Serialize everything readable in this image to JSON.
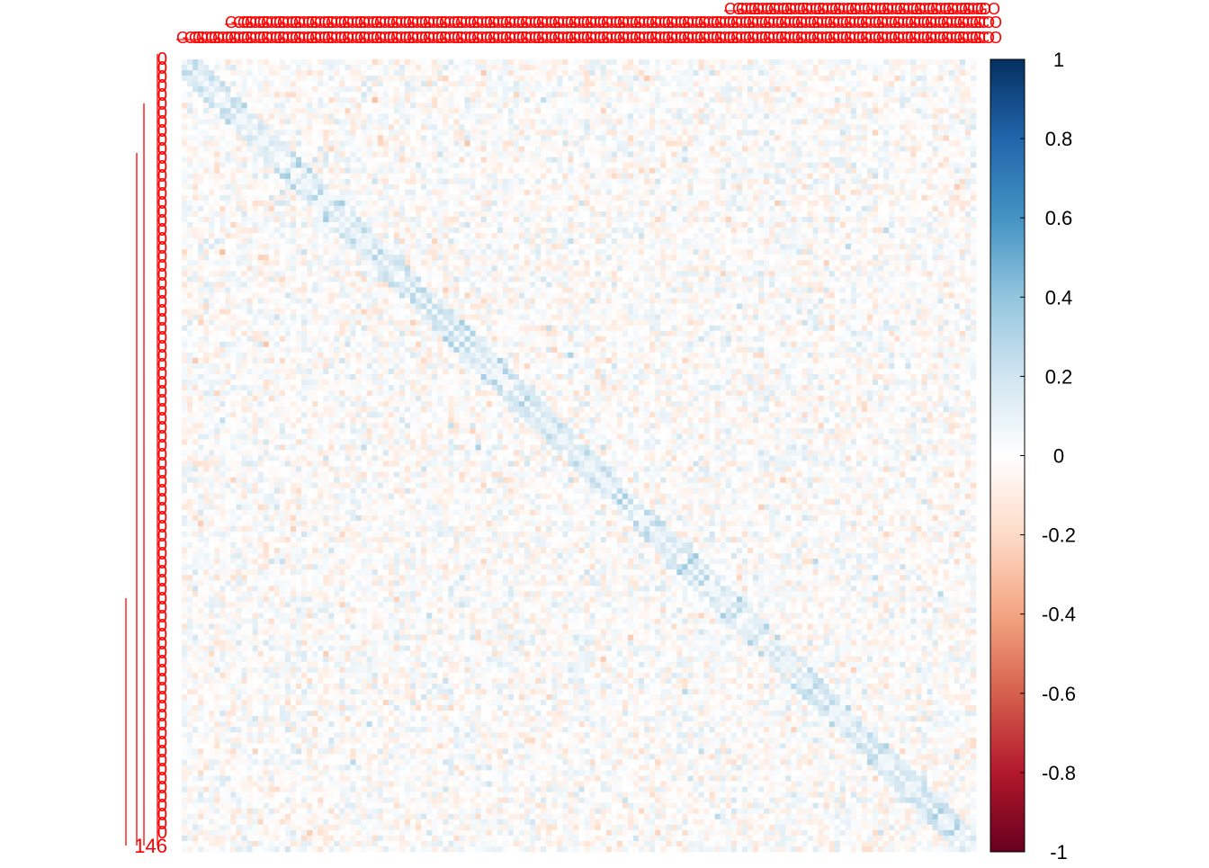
{
  "chart_data": {
    "type": "heatmap",
    "title": "",
    "xlabel": "",
    "ylabel": "",
    "matrix_size": 146,
    "value_range": [
      -1,
      1
    ],
    "diagonal_pattern": "weak positive blocks along main diagonal, |r| mostly < 0.3",
    "colorbar": {
      "ticks": [
        1,
        0.8,
        0.6,
        0.4,
        0.2,
        0,
        -0.2,
        -0.4,
        -0.6,
        -0.8,
        -1
      ],
      "tick_labels": [
        "1",
        "0.8",
        "0.6",
        "0.4",
        "0.2",
        "0",
        "-0.2",
        "-0.4",
        "-0.6",
        "-0.8",
        "-1"
      ],
      "colors": [
        "#053061",
        "#2166AC",
        "#4393C3",
        "#92C5DE",
        "#D1E5F0",
        "#FFFFFF",
        "#FDDBC7",
        "#F4A582",
        "#D6604D",
        "#B2182B",
        "#67001F"
      ]
    },
    "label_color": "#FF0000",
    "row_labels_visible_end": "146",
    "grid": false,
    "legend_placement": "right"
  }
}
